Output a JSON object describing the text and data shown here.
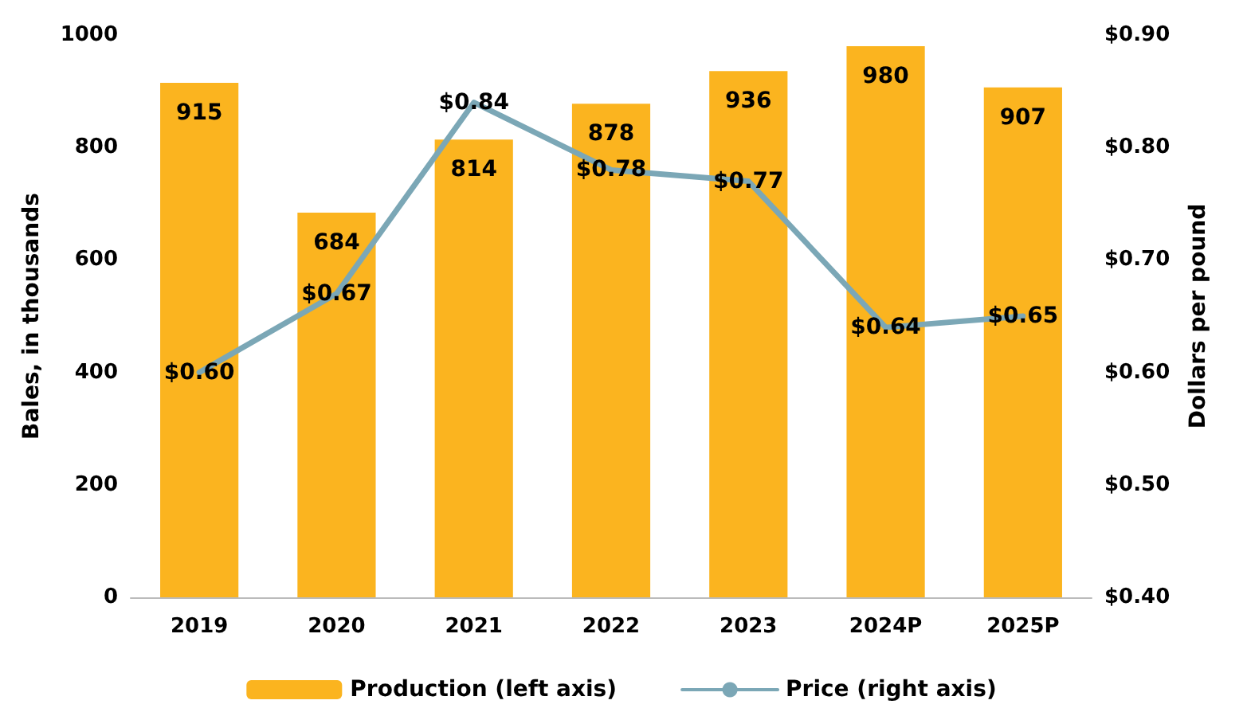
{
  "chart_data": {
    "type": "bar",
    "categories": [
      "2019",
      "2020",
      "2021",
      "2022",
      "2023",
      "2024P",
      "2025P"
    ],
    "ylabel": "Bales, in thousands",
    "y2label": "Dollars per pound",
    "series": [
      {
        "name": "Production (left axis)",
        "color": "#fbb41f",
        "values": [
          915,
          684,
          814,
          878,
          936,
          980,
          907
        ],
        "value_labels": [
          "915",
          "684",
          "814",
          "878",
          "936",
          "980",
          "907"
        ]
      },
      {
        "name": "Price (right axis)",
        "type": "line",
        "axis": "y2",
        "color": "#7ba7b6",
        "values": [
          0.6,
          0.67,
          0.84,
          0.78,
          0.77,
          0.64,
          0.65
        ],
        "value_labels": [
          "$0.60",
          "$0.67",
          "$0.84",
          "$0.78",
          "$0.77",
          "$0.64",
          "$0.65"
        ]
      }
    ],
    "ylim": [
      0,
      1000
    ],
    "yticks": [
      0,
      200,
      400,
      600,
      800,
      1000
    ],
    "y2lim": [
      0.4,
      0.9
    ],
    "y2ticks": [
      {
        "value": 0.4,
        "label": "$0.40"
      },
      {
        "value": 0.5,
        "label": "$0.50"
      },
      {
        "value": 0.6,
        "label": "$0.60"
      },
      {
        "value": 0.7,
        "label": "$0.70"
      },
      {
        "value": 0.8,
        "label": "$0.80"
      },
      {
        "value": 0.9,
        "label": "$0.90"
      }
    ],
    "grid": false,
    "legend": "bottom",
    "marker": "none",
    "line_style": "solid"
  }
}
